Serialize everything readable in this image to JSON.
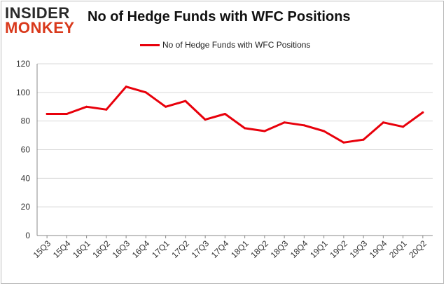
{
  "brand": {
    "line1": "INSIDER",
    "line2": "MONKEY"
  },
  "chart_data": {
    "type": "line",
    "title": "No of Hedge Funds with WFC Positions",
    "xlabel": "",
    "ylabel": "",
    "categories": [
      "15Q3",
      "15Q4",
      "16Q1",
      "16Q2",
      "16Q3",
      "16Q4",
      "17Q1",
      "17Q2",
      "17Q3",
      "17Q4",
      "18Q1",
      "18Q2",
      "18Q3",
      "18Q4",
      "19Q1",
      "19Q2",
      "19Q3",
      "19Q4",
      "20Q1",
      "20Q2"
    ],
    "series": [
      {
        "name": "No of Hedge Funds with WFC Positions",
        "color": "#e8000b",
        "values": [
          85,
          85,
          90,
          88,
          104,
          100,
          90,
          94,
          81,
          85,
          75,
          73,
          79,
          77,
          73,
          65,
          67,
          79,
          76,
          86
        ]
      }
    ],
    "ylim": [
      0,
      120
    ],
    "yticks": [
      0,
      20,
      40,
      60,
      80,
      100,
      120
    ],
    "grid": true,
    "legend_position": "top"
  }
}
